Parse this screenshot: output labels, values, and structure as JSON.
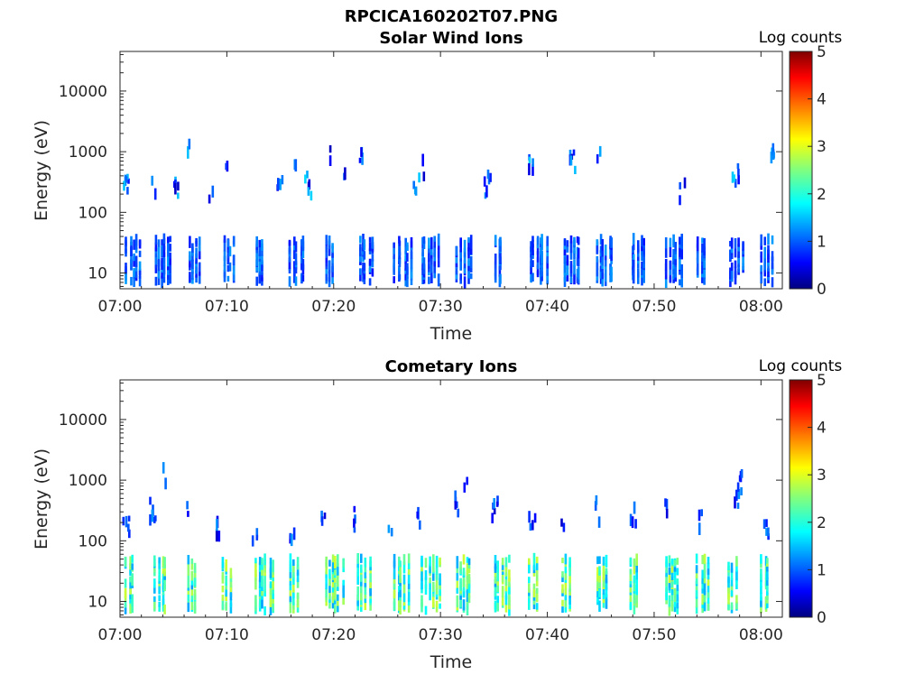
{
  "figure_title": "RPCICA160202T07.PNG",
  "chart_data": [
    {
      "type": "heatmap",
      "title": "Solar Wind Ions",
      "xlabel": "Time",
      "ylabel": "Energy (eV)",
      "x_ticks": [
        "07:00",
        "07:10",
        "07:20",
        "07:30",
        "07:40",
        "07:50",
        "08:00"
      ],
      "x_range_minutes": [
        0,
        62
      ],
      "y_ticks": [
        "10",
        "100",
        "1000",
        "10000"
      ],
      "y_scale": "log",
      "y_range": [
        5.5,
        45000
      ],
      "colorbar": {
        "title": "Log counts",
        "ticks": [
          "0",
          "1",
          "2",
          "3",
          "4",
          "5"
        ],
        "range": [
          0,
          5
        ],
        "colormap": "jet"
      },
      "low_energy_bursts_minutes": [
        0.5,
        3.2,
        6.3,
        9.6,
        12.7,
        15.9,
        19.2,
        22.3,
        25.6,
        28.2,
        31.5,
        35.0,
        38.3,
        41.4,
        44.5,
        47.8,
        51.0,
        54.0,
        57.0,
        60.0
      ],
      "high_energy_bursts": [
        {
          "t": 0.5,
          "e": 330
        },
        {
          "t": 3.0,
          "e": 240
        },
        {
          "t": 5.2,
          "e": 230
        },
        {
          "t": 6.5,
          "e": 1000
        },
        {
          "t": 8.3,
          "e": 230
        },
        {
          "t": 10.0,
          "e": 700
        },
        {
          "t": 14.8,
          "e": 230
        },
        {
          "t": 16.3,
          "e": 800
        },
        {
          "t": 17.5,
          "e": 270
        },
        {
          "t": 19.8,
          "e": 900
        },
        {
          "t": 21.0,
          "e": 280
        },
        {
          "t": 22.3,
          "e": 750
        },
        {
          "t": 27.6,
          "e": 270
        },
        {
          "t": 28.4,
          "e": 500
        },
        {
          "t": 34.3,
          "e": 280
        },
        {
          "t": 38.3,
          "e": 700
        },
        {
          "t": 42.3,
          "e": 700
        },
        {
          "t": 44.6,
          "e": 650
        },
        {
          "t": 52.5,
          "e": 230
        },
        {
          "t": 57.5,
          "e": 450
        },
        {
          "t": 61.0,
          "e": 900
        }
      ]
    },
    {
      "type": "heatmap",
      "title": "Cometary Ions",
      "xlabel": "Time",
      "ylabel": "Energy (eV)",
      "x_ticks": [
        "07:00",
        "07:10",
        "07:20",
        "07:30",
        "07:40",
        "07:50",
        "08:00"
      ],
      "x_range_minutes": [
        0,
        62
      ],
      "y_ticks": [
        "10",
        "100",
        "1000",
        "10000"
      ],
      "y_scale": "log",
      "y_range": [
        5.5,
        45000
      ],
      "colorbar": {
        "title": "Log counts",
        "ticks": [
          "0",
          "1",
          "2",
          "3",
          "4",
          "5"
        ],
        "range": [
          0,
          5
        ],
        "colormap": "jet"
      },
      "low_energy_bursts_minutes": [
        0.5,
        3.2,
        6.3,
        9.6,
        12.7,
        15.9,
        19.2,
        22.3,
        25.6,
        28.2,
        31.5,
        35.0,
        38.3,
        41.4,
        44.5,
        47.8,
        51.0,
        54.0,
        57.0,
        60.0
      ],
      "high_energy_bursts": [
        {
          "t": 0.5,
          "e": 200
        },
        {
          "t": 3.0,
          "e": 300
        },
        {
          "t": 6.0,
          "e": 250
        },
        {
          "t": 9.0,
          "e": 150
        },
        {
          "t": 12.5,
          "e": 140
        },
        {
          "t": 16.0,
          "e": 150
        },
        {
          "t": 18.8,
          "e": 250
        },
        {
          "t": 22.0,
          "e": 230
        },
        {
          "t": 25.3,
          "e": 160
        },
        {
          "t": 28.0,
          "e": 220
        },
        {
          "t": 31.5,
          "e": 400
        },
        {
          "t": 35.0,
          "e": 350
        },
        {
          "t": 38.5,
          "e": 180
        },
        {
          "t": 41.5,
          "e": 150
        },
        {
          "t": 44.6,
          "e": 300
        },
        {
          "t": 48.0,
          "e": 250
        },
        {
          "t": 51.2,
          "e": 300
        },
        {
          "t": 54.3,
          "e": 200
        },
        {
          "t": 57.5,
          "e": 500
        },
        {
          "t": 60.5,
          "e": 150
        },
        {
          "t": 4.0,
          "e": 1300
        },
        {
          "t": 32.3,
          "e": 800
        },
        {
          "t": 58.0,
          "e": 900
        }
      ]
    }
  ]
}
